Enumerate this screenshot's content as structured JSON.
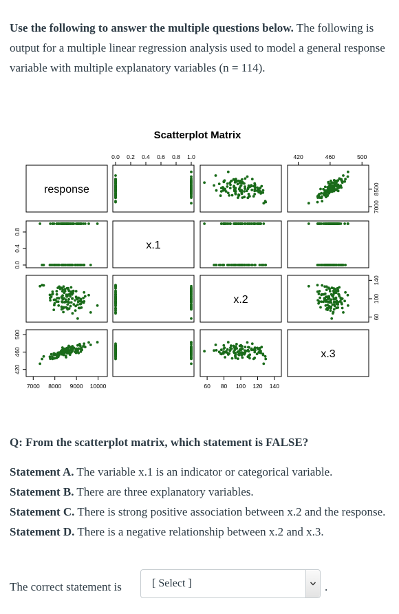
{
  "intro": {
    "bold": "Use the following to answer the multiple questions below.",
    "rest": " The following is output for a multiple linear regression analysis used to model a general response variable with multiple explanatory variables (n = 114)."
  },
  "chart_data": {
    "type": "scatter",
    "title": "Scatterplot Matrix",
    "variables": [
      "response",
      "x.1",
      "x.2",
      "x.3"
    ],
    "axis_ticks": {
      "response": [
        "7000",
        "8000",
        "9000",
        "10000"
      ],
      "x.1": [
        "0.0",
        "0.2",
        "0.4",
        "0.6",
        "0.8",
        "1.0"
      ],
      "x.2": [
        "60",
        "80",
        "100",
        "120",
        "140"
      ],
      "x.3": [
        "420",
        "460",
        "500"
      ]
    },
    "left_axis_labels": {
      "x.1": [
        "0.0",
        "0.4",
        "0.8"
      ],
      "x.3": [
        "420",
        "460",
        "500"
      ]
    },
    "right_axis_labels": {
      "response": [
        "7000",
        "8500"
      ],
      "x.2": [
        "60",
        "100",
        "140"
      ]
    },
    "ranges": {
      "response": [
        6800,
        10300
      ],
      "x.1": [
        0,
        1
      ],
      "x.2": [
        55,
        145
      ],
      "x.3": [
        410,
        505
      ]
    },
    "point_color": "#1a6b1a",
    "n": 114
  },
  "question": {
    "title": "Q: From the scatterplot matrix, which statement is FALSE?",
    "statements": [
      {
        "label": "Statement A.",
        "text": " The variable x.1 is an indicator or categorical variable."
      },
      {
        "label": "Statement B.",
        "text": " There are three explanatory variables."
      },
      {
        "label": "Statement C.",
        "text": " There is strong positive association between x.2 and the response."
      },
      {
        "label": "Statement D.",
        "text": " There is a negative relationship between x.2 and x.3."
      }
    ]
  },
  "answer": {
    "prompt": "The correct statement is",
    "select_value": "[ Select ]",
    "suffix": "."
  }
}
